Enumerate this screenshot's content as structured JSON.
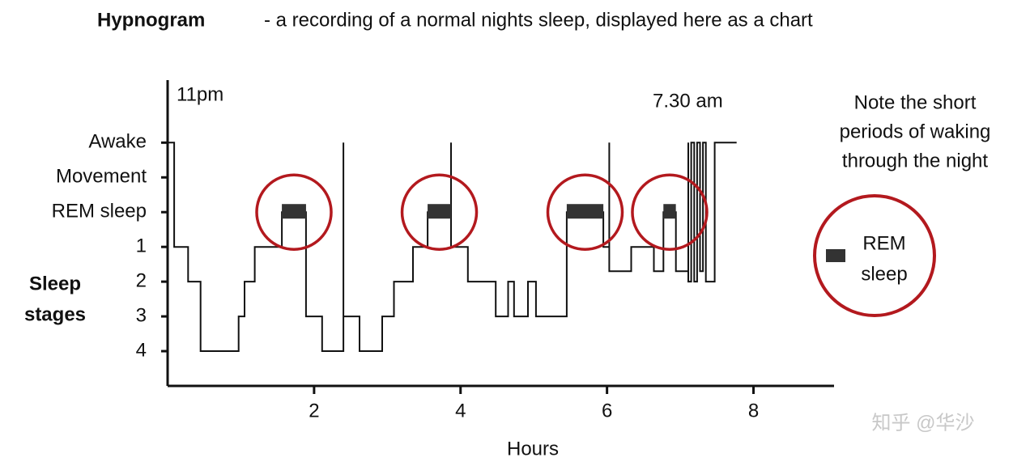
{
  "chart_data": {
    "type": "step",
    "title": "Hypnogram",
    "subtitle": "- a recording of a normal nights sleep, displayed here as a chart",
    "ylabel": [
      "Sleep",
      "stages"
    ],
    "xlabel": "Hours",
    "start_label": "11pm",
    "end_label": "7.30 am",
    "note": [
      "Note the short",
      "periods of waking",
      "through the night"
    ],
    "legend": [
      "REM",
      "sleep"
    ],
    "watermark": "知乎 @华沙",
    "color": "#111111",
    "rem_color": "#333333",
    "circle_color": "#b3191e",
    "xlim": [
      0,
      9.1
    ],
    "xticks": [
      2,
      4,
      6,
      8
    ],
    "ylim": [
      5,
      -3.8
    ],
    "yticks": [
      {
        "value": -2,
        "label": "Awake"
      },
      {
        "value": -1,
        "label": "Movement"
      },
      {
        "value": 0,
        "label": "REM sleep"
      },
      1,
      2,
      3,
      4
    ],
    "x": [
      0,
      0.09,
      0.09,
      0.28,
      0.28,
      0.45,
      0.45,
      0.97,
      0.97,
      1.05,
      1.05,
      1.19,
      1.19,
      1.56,
      1.56,
      1.89,
      1.89,
      2.11,
      2.11,
      2.4,
      2.4,
      2.4,
      2.62,
      2.62,
      2.93,
      2.93,
      3.09,
      3.09,
      3.35,
      3.35,
      3.55,
      3.55,
      3.87,
      3.87,
      3.87,
      4.1,
      4.1,
      4.48,
      4.48,
      4.65,
      4.65,
      4.73,
      4.73,
      4.92,
      4.92,
      5.03,
      5.03,
      5.45,
      5.45,
      5.95,
      5.95,
      6.03,
      6.03,
      6.03,
      6.33,
      6.33,
      6.64,
      6.64,
      6.77,
      6.77,
      6.94,
      6.94,
      7.11,
      7.11,
      7.11,
      7.15,
      7.15,
      7.19,
      7.19,
      7.23,
      7.23,
      7.27,
      7.27,
      7.31,
      7.31,
      7.35,
      7.35,
      7.47,
      7.47,
      7.77
    ],
    "values": [
      -2,
      -2,
      1,
      1,
      2,
      2,
      4,
      4,
      3,
      3,
      2,
      2,
      1,
      1,
      0,
      0,
      3,
      3,
      4,
      4,
      -2,
      3,
      3,
      4,
      4,
      3,
      3,
      2,
      2,
      1,
      1,
      0,
      0,
      -2,
      1,
      1,
      2,
      2,
      3,
      3,
      2,
      2,
      3,
      3,
      2,
      2,
      3,
      3,
      0,
      0,
      1,
      1,
      -2,
      1.7,
      1.7,
      1,
      1,
      1.7,
      1.7,
      0,
      0,
      1.7,
      1.7,
      -2,
      2,
      2,
      -2,
      -2,
      2,
      2,
      -2,
      -2,
      1.7,
      1.7,
      -2,
      -2,
      2,
      2,
      -2,
      -2
    ],
    "rem_periods": [
      [
        1.56,
        1.89
      ],
      [
        3.55,
        3.87
      ],
      [
        5.45,
        5.95
      ],
      [
        6.77,
        6.94
      ]
    ]
  }
}
